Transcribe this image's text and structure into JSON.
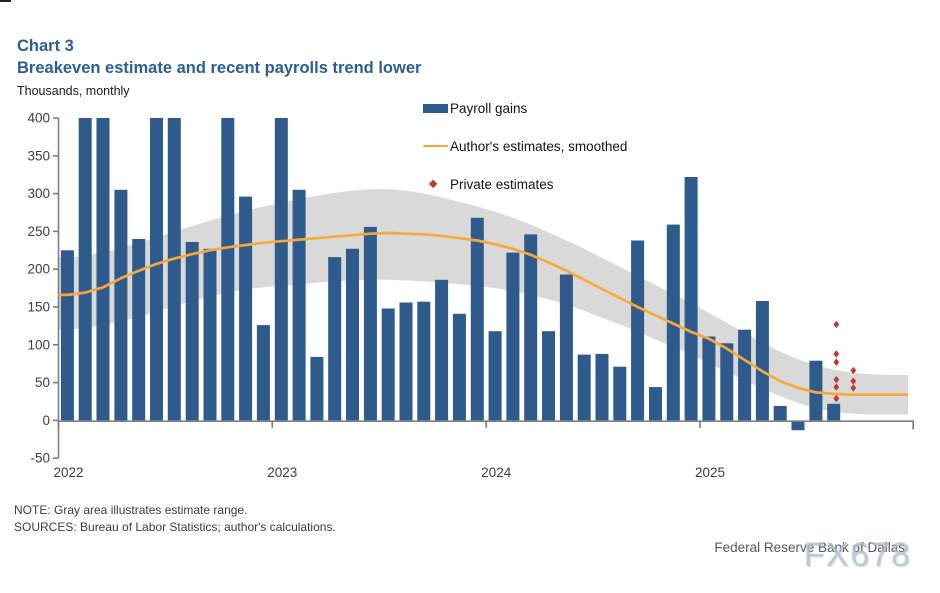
{
  "header": {
    "chart_label": "Chart 3",
    "title": "Breakeven estimate and recent payrolls trend lower",
    "units": "Thousands, monthly"
  },
  "legend": {
    "items": [
      {
        "label": "Payroll gains",
        "marker": "bar-swatch",
        "color": "#2f5a8c"
      },
      {
        "label": "Author's estimates, smoothed",
        "marker": "line-swatch",
        "color": "#f7a83c"
      },
      {
        "label": "Private estimates",
        "marker": "diamond-swatch",
        "color": "#bf3a2d"
      }
    ]
  },
  "notes": {
    "note_line": "NOTE: Gray area illustrates estimate range.",
    "sources_line": "SOURCES: Bureau of Labor Statistics; author's calculations."
  },
  "attribution": {
    "bank": "Federal Reserve Bank of Dallas",
    "watermark": "FX678"
  },
  "chart_data": {
    "type": "bar",
    "title": "Breakeven estimate and recent payrolls trend lower",
    "ylabel": "Thousands, monthly",
    "ylim": [
      -50,
      400
    ],
    "y_ticks": [
      400,
      350,
      300,
      250,
      200,
      150,
      100,
      50,
      0,
      -50
    ],
    "x_tick_labels": [
      "2022",
      "2023",
      "2024",
      "2025"
    ],
    "grid": false,
    "legend_position": "upper-center-right",
    "bars": {
      "name": "Payroll gains",
      "start_month": "2022-01",
      "end_month": "2025-08",
      "clipped_at": 400,
      "values": [
        225,
        400,
        400,
        305,
        240,
        400,
        400,
        236,
        227,
        400,
        296,
        126,
        400,
        305,
        84,
        216,
        227,
        256,
        148,
        156,
        157,
        186,
        141,
        268,
        118,
        222,
        246,
        118,
        193,
        87,
        88,
        71,
        238,
        44,
        259,
        322,
        111,
        102,
        120,
        158,
        19,
        -13,
        79,
        22
      ]
    },
    "line": {
      "name": "Author's estimates, smoothed",
      "start_month": "2022-01",
      "end_month": "2025-12",
      "values": [
        166,
        169,
        176,
        188,
        198,
        207,
        214,
        220,
        225,
        229,
        232,
        235,
        237,
        239,
        241,
        243,
        245,
        247,
        248,
        247,
        246,
        244,
        241,
        238,
        233,
        227,
        219,
        209,
        198,
        186,
        174,
        162,
        150,
        139,
        128,
        117,
        108,
        95,
        80,
        65,
        52,
        43,
        37,
        35,
        34,
        34,
        34,
        34
      ]
    },
    "band": {
      "name": "estimate range",
      "start_month": "2022-01",
      "end_month": "2025-12",
      "upper": [
        215,
        218,
        222,
        228,
        235,
        242,
        250,
        257,
        264,
        271,
        277,
        283,
        288,
        293,
        297,
        301,
        304,
        306,
        306,
        304,
        300,
        295,
        289,
        283,
        276,
        268,
        259,
        249,
        238,
        227,
        215,
        203,
        191,
        179,
        167,
        156,
        142,
        129,
        116,
        103,
        91,
        81,
        73,
        67,
        63,
        61,
        60,
        60
      ],
      "lower": [
        120,
        122,
        126,
        131,
        137,
        144,
        151,
        158,
        164,
        169,
        173,
        176,
        178,
        180,
        182,
        184,
        185,
        186,
        186,
        185,
        184,
        182,
        180,
        178,
        175,
        171,
        166,
        160,
        153,
        145,
        136,
        127,
        117,
        107,
        97,
        88,
        75,
        64,
        53,
        42,
        32,
        23,
        16,
        11,
        9,
        8,
        8,
        8
      ]
    },
    "scatter": {
      "name": "Private estimates",
      "points": [
        {
          "x_month": 43.15,
          "month": "2025-09",
          "value": 127
        },
        {
          "x_month": 43.15,
          "month": "2025-09",
          "value": 88
        },
        {
          "x_month": 43.15,
          "month": "2025-09",
          "value": 77
        },
        {
          "x_month": 43.15,
          "month": "2025-09",
          "value": 54
        },
        {
          "x_month": 43.15,
          "month": "2025-09",
          "value": 44
        },
        {
          "x_month": 43.15,
          "month": "2025-09",
          "value": 29
        },
        {
          "x_month": 44.1,
          "month": "2025-10",
          "value": 66
        },
        {
          "x_month": 44.1,
          "month": "2025-10",
          "value": 52
        },
        {
          "x_month": 44.1,
          "month": "2025-10",
          "value": 43
        }
      ]
    },
    "colors": {
      "bar": "#2f5a8c",
      "line": "#f7a83c",
      "band": "#d9d9d9",
      "scatter": "#bf3a2d",
      "axis": "#7f7f7f",
      "tick_label": "#3d3d3d",
      "title": "#2b5e97"
    }
  }
}
